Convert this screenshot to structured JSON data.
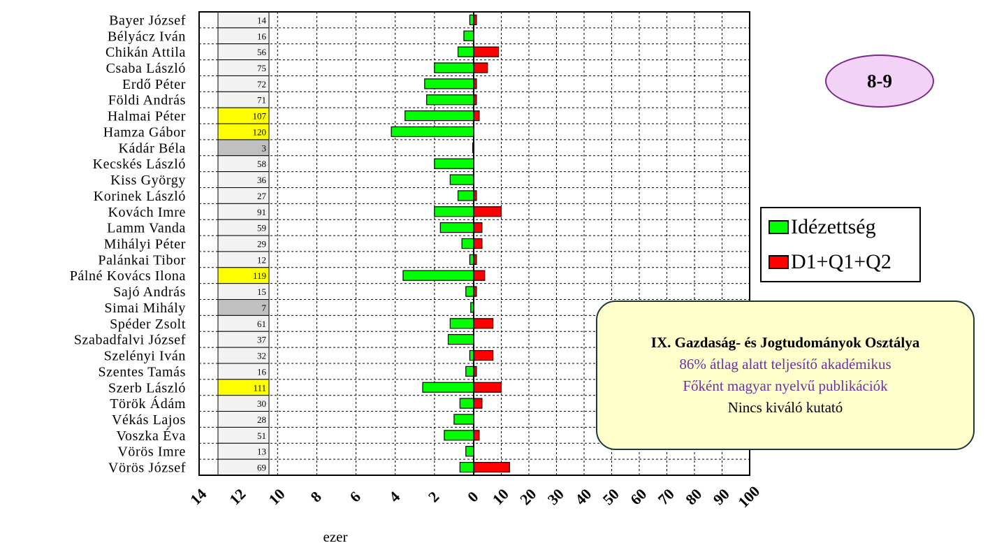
{
  "badge": "8-9",
  "legend": [
    {
      "label": "Idézettség",
      "color": "#00ff00"
    },
    {
      "label": "D1+Q1+Q2",
      "color": "#ff0000"
    }
  ],
  "infobox": {
    "title": "IX. Gazdaság- és Jogtudományok Osztálya",
    "line1": "86% átlag alatt teljesítő akadémikus",
    "line2": "Főként magyar nyelvű publikációk",
    "line3": "Nincs kiváló kutató"
  },
  "chart_data": {
    "type": "bar",
    "orientation": "horizontal-diverging",
    "xlabel": "ezer",
    "left_ticks": [
      "14",
      "12",
      "10",
      "8",
      "6",
      "4",
      "2",
      "0"
    ],
    "right_ticks": [
      "10",
      "20",
      "30",
      "40",
      "50",
      "60",
      "70",
      "80",
      "90",
      "100"
    ],
    "left_range": [
      0,
      14
    ],
    "right_range": [
      0,
      100
    ],
    "grid": true,
    "legend_position": "right",
    "colors": {
      "Idézettség": "#00ff00",
      "D1+Q1+Q2": "#ff0000",
      "highlight": "#ffff00",
      "gray": "#c0c0c0",
      "default": "#f2f2f2"
    },
    "rows": [
      {
        "name": "Bayer József",
        "value": 14,
        "highlight": "none"
      },
      {
        "name": "Bélyácz Iván",
        "value": 16,
        "highlight": "none"
      },
      {
        "name": "Chikán Attila",
        "value": 56,
        "highlight": "none"
      },
      {
        "name": "Csaba László",
        "value": 75,
        "highlight": "none"
      },
      {
        "name": "Erdő Péter",
        "value": 72,
        "highlight": "none"
      },
      {
        "name": "Földi András",
        "value": 71,
        "highlight": "none"
      },
      {
        "name": "Halmai Péter",
        "value": 107,
        "highlight": "yellow"
      },
      {
        "name": "Hamza Gábor",
        "value": 120,
        "highlight": "yellow"
      },
      {
        "name": "Kádár Béla",
        "value": 3,
        "highlight": "gray"
      },
      {
        "name": "Kecskés László",
        "value": 58,
        "highlight": "none"
      },
      {
        "name": "Kiss György",
        "value": 36,
        "highlight": "none"
      },
      {
        "name": "Korinek László",
        "value": 27,
        "highlight": "none"
      },
      {
        "name": "Kovách Imre",
        "value": 91,
        "highlight": "none"
      },
      {
        "name": "Lamm Vanda",
        "value": 59,
        "highlight": "none"
      },
      {
        "name": "Mihályi Péter",
        "value": 29,
        "highlight": "none"
      },
      {
        "name": "Palánkai Tibor",
        "value": 12,
        "highlight": "none"
      },
      {
        "name": "Pálné Kovács Ilona",
        "value": 119,
        "highlight": "yellow"
      },
      {
        "name": "Sajó András",
        "value": 15,
        "highlight": "none"
      },
      {
        "name": "Simai Mihály",
        "value": 7,
        "highlight": "gray"
      },
      {
        "name": "Spéder Zsolt",
        "value": 61,
        "highlight": "none"
      },
      {
        "name": "Szabadfalvi József",
        "value": 37,
        "highlight": "none"
      },
      {
        "name": "Szelényi Iván",
        "value": 32,
        "highlight": "none"
      },
      {
        "name": "Szentes Tamás",
        "value": 16,
        "highlight": "none"
      },
      {
        "name": "Szerb László",
        "value": 111,
        "highlight": "yellow"
      },
      {
        "name": "Török Ádám",
        "value": 30,
        "highlight": "none"
      },
      {
        "name": "Vékás Lajos",
        "value": 28,
        "highlight": "none"
      },
      {
        "name": "Voszka Éva",
        "value": 51,
        "highlight": "none"
      },
      {
        "name": "Vörös Imre",
        "value": 13,
        "highlight": "none"
      },
      {
        "name": "Vörös József",
        "value": 69,
        "highlight": "none"
      }
    ],
    "series": [
      {
        "name": "Idézettség",
        "direction": "left",
        "unit": "ezer",
        "values": [
          0.2,
          0.5,
          0.8,
          2.0,
          2.5,
          2.4,
          3.5,
          4.2,
          0.05,
          2.0,
          1.2,
          0.8,
          2.0,
          1.7,
          0.6,
          0.2,
          3.6,
          0.4,
          0.15,
          1.2,
          1.3,
          0.2,
          0.4,
          2.6,
          0.7,
          1.0,
          1.5,
          0.4,
          0.7
        ]
      },
      {
        "name": "D1+Q1+Q2",
        "direction": "right",
        "values": [
          1,
          0,
          9,
          5,
          1,
          1,
          2,
          0,
          0,
          0,
          0,
          1,
          10,
          3,
          3,
          1,
          4,
          1,
          0,
          7,
          0,
          7,
          1,
          10,
          3,
          0,
          2,
          0,
          13
        ]
      }
    ]
  }
}
